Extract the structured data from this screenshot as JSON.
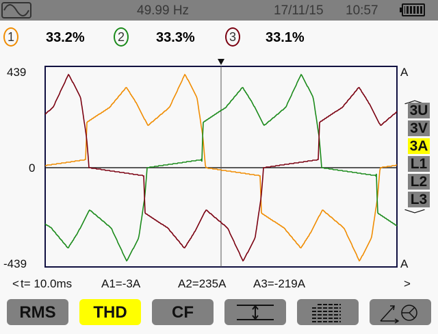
{
  "status_bar": {
    "mode_icon": "sine-wave-icon",
    "frequency": "49.99 Hz",
    "date": "17/11/15",
    "time": "10:57",
    "battery_icon": "battery-full-icon"
  },
  "channels": [
    {
      "number": "1",
      "value": "33.2%",
      "color": "#f08c00"
    },
    {
      "number": "2",
      "value": "33.3%",
      "color": "#1a8a1a"
    },
    {
      "number": "3",
      "value": "33.1%",
      "color": "#7a0010"
    }
  ],
  "plot": {
    "y_max": "439",
    "y_zero": "0",
    "y_min": "-439",
    "unit_top": "A",
    "unit_bottom": "A",
    "y_range": [
      -439,
      439
    ],
    "time_span_ms": 20,
    "cursor_time_ms": 10,
    "phase_start_ms": [
      2.24,
      8.9,
      15.57
    ],
    "conduction_ms": 6.86,
    "half_cycle_shape_A": [
      [
        0,
        22
      ],
      [
        0.01,
        198
      ],
      [
        0.2,
        263
      ],
      [
        0.34,
        351
      ],
      [
        0.42,
        285
      ],
      [
        0.52,
        184
      ],
      [
        0.7,
        263
      ],
      [
        0.83,
        408
      ],
      [
        0.93,
        307
      ],
      [
        0.98,
        132
      ],
      [
        1,
        9
      ]
    ],
    "off_ramp_A": 35
  },
  "side_menu": {
    "items": [
      "3U",
      "3V",
      "3A",
      "L1",
      "L2",
      "L3"
    ],
    "selected": "3A"
  },
  "cursor_readout": {
    "prev": "<",
    "time": "t= 10.0ms",
    "a1": "A1=-3A",
    "a2": "A2=235A",
    "a3": "A3=-219A",
    "next": ">"
  },
  "buttons": [
    {
      "label": "RMS"
    },
    {
      "label": "THD",
      "selected": true
    },
    {
      "label": "CF"
    },
    {
      "label": "",
      "icon": "min-max-icon"
    },
    {
      "label": "",
      "icon": "summary-table-icon"
    },
    {
      "label": "",
      "icon": "vector-diagram-icon"
    }
  ]
}
